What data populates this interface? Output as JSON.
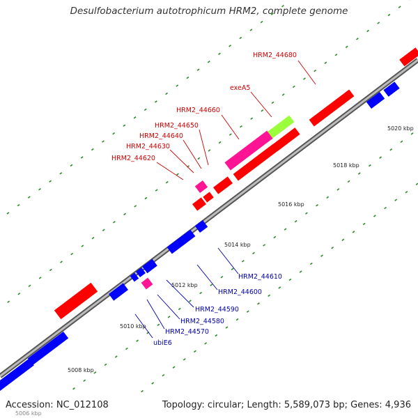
{
  "title": "Desulfobacterium autotrophicum HRM2, complete genome",
  "accession": "Accession: NC_012108",
  "summary": "Topology: circular; Length: 5,589,073 bp; Genes: 4,936",
  "colors": {
    "forward_gene": "#ff0000",
    "reverse_gene": "#0000ff",
    "rna": "#ff1493",
    "highlight": "#9aff3a",
    "backbone": "#777777",
    "tick": "#2a8a2a",
    "fwd_label": "#cc0000",
    "rev_label": "#0000aa"
  },
  "scale_labels": [
    "5008 kbp",
    "5010 kbp",
    "5012 kbp",
    "5014 kbp",
    "5016 kbp",
    "5018 kbp",
    "5020 kbp",
    "5006 kbp"
  ],
  "forward_gene_labels": [
    "HRM2_44680",
    "exeA5",
    "HRM2_44660",
    "HRM2_44650",
    "HRM2_44640",
    "HRM2_44630",
    "HRM2_44620"
  ],
  "reverse_gene_labels": [
    "HRM2_44610",
    "HRM2_44600",
    "HRM2_44590",
    "HRM2_44580",
    "HRM2_44570",
    "ubiE6"
  ]
}
